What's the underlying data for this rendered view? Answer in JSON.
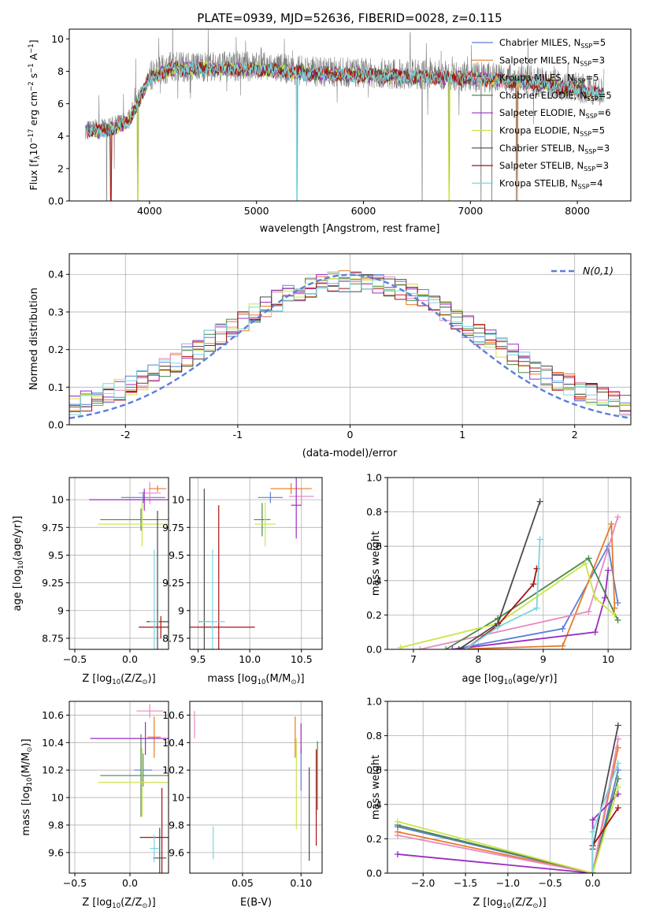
{
  "figure_title": "PLATE=0939, MJD=52636, FIBERID=0028, z=0.115",
  "palette": [
    "#5b7fd8",
    "#e87a2a",
    "#e88ac0",
    "#4a8a4a",
    "#9b2cc0",
    "#cde34a",
    "#4a4a4a",
    "#aa1010",
    "#7ad6de"
  ],
  "chart_data": [
    {
      "id": "spectrum",
      "type": "line",
      "title": "PLATE=0939, MJD=52636, FIBERID=0028, z=0.115",
      "xlabel": "wavelength [Angstrom, rest frame]",
      "ylabel_parts": [
        "Flux [f",
        "λ",
        "10",
        "−17",
        " erg cm",
        "−2",
        " s",
        "−1",
        " A",
        "−1",
        "]"
      ],
      "xlim": [
        3250,
        8500
      ],
      "ylim": [
        0,
        10.6
      ],
      "xticks": [
        4000,
        5000,
        6000,
        7000,
        8000
      ],
      "yticks": [
        0,
        2,
        4,
        6,
        8,
        10
      ],
      "legend_position": "top-right",
      "data_color": "#808080",
      "series": [
        {
          "name": "Chabrier MILES, N",
          "sub": "SSP",
          "suffix": "=5",
          "color": "#5b7fd8"
        },
        {
          "name": "Salpeter MILES, N",
          "sub": "SSP",
          "suffix": "=3",
          "color": "#e87a2a"
        },
        {
          "name": "Kroupa MILES, N",
          "sub": "SSP",
          "suffix": "=5",
          "color": "#e88ac0"
        },
        {
          "name": "Chabrier ELODIE, N",
          "sub": "SSP",
          "suffix": "=5",
          "color": "#4a8a4a"
        },
        {
          "name": "Salpeter ELODIE, N",
          "sub": "SSP",
          "suffix": "=6",
          "color": "#9b2cc0"
        },
        {
          "name": "Kroupa ELODIE, N",
          "sub": "SSP",
          "suffix": "=5",
          "color": "#cde34a"
        },
        {
          "name": "Chabrier STELIB, N",
          "sub": "SSP",
          "suffix": "=3",
          "color": "#4a4a4a"
        },
        {
          "name": "Salpeter STELIB, N",
          "sub": "SSP",
          "suffix": "=3",
          "color": "#aa1010"
        },
        {
          "name": "Kroupa STELIB, N",
          "sub": "SSP",
          "suffix": "=4",
          "color": "#7ad6de"
        }
      ],
      "continuum": {
        "x": [
          3400,
          3600,
          3800,
          4000,
          4200,
          4500,
          5000,
          5500,
          6000,
          6500,
          7000,
          7500,
          8000,
          8250
        ],
        "y": [
          4.4,
          4.5,
          5.0,
          7.7,
          8.3,
          8.3,
          8.3,
          8.0,
          7.9,
          7.8,
          7.7,
          7.5,
          7.0,
          6.7
        ]
      },
      "spikes": [
        {
          "x": 3600,
          "y": 0
        },
        {
          "x": 3640,
          "y": 0
        },
        {
          "x": 3890,
          "y": 0
        },
        {
          "x": 5380,
          "y": 0
        },
        {
          "x": 6550,
          "y": 0
        },
        {
          "x": 6800,
          "y": 0
        },
        {
          "x": 7100,
          "y": 0
        },
        {
          "x": 7200,
          "y": 0
        },
        {
          "x": 7430,
          "y": 0
        },
        {
          "x": 7440,
          "y": 0
        }
      ]
    },
    {
      "id": "residuals",
      "type": "step",
      "xlabel": "(data-model)/error",
      "ylabel": "Normed distribution",
      "xlim": [
        -2.5,
        2.5
      ],
      "ylim": [
        0,
        0.455
      ],
      "xticks": [
        -2,
        -1,
        0,
        1,
        2
      ],
      "yticks": [
        0.0,
        0.1,
        0.2,
        0.3,
        0.4
      ],
      "grid": true,
      "legend_position": "top-right",
      "reference": {
        "name": "N(0,1)",
        "mean": 0,
        "sigma": 1,
        "color": "#5b7fd8"
      },
      "bin_width": 0.1
    },
    {
      "id": "age-vs-Z",
      "type": "errorbar",
      "xlabel_parts": [
        "Z [log",
        "10",
        "(Z/Z",
        "⊙",
        ")]"
      ],
      "ylabel_parts": [
        "age  [log",
        "10",
        "(age/yr)]"
      ],
      "xlim": [
        -0.55,
        0.35
      ],
      "ylim": [
        8.65,
        10.2
      ],
      "xticks": [
        -0.5,
        0.0,
        0.5
      ],
      "xticklabels": [
        "−0.5",
        "0.0",
        "0.5"
      ],
      "yticks": [
        8.75,
        9.0,
        9.25,
        9.5,
        9.75,
        10.0
      ],
      "grid": true,
      "points": [
        {
          "x": 0.12,
          "y": 10.02,
          "xerr": 0.2,
          "yerr": 0.05,
          "c": 0
        },
        {
          "x": 0.25,
          "y": 10.1,
          "xerr": 0.08,
          "yerr": 0.03,
          "c": 1
        },
        {
          "x": 0.18,
          "y": 10.06,
          "xerr": 0.1,
          "yerr": 0.1,
          "c": 2
        },
        {
          "x": 0.1,
          "y": 9.82,
          "xerr": 0.37,
          "yerr": 0.1,
          "c": 3
        },
        {
          "x": 0.13,
          "y": 10.0,
          "xerr": 0.5,
          "yerr": 0.1,
          "c": 4
        },
        {
          "x": 0.11,
          "y": 9.78,
          "xerr": 0.4,
          "yerr": 0.2,
          "c": 5
        },
        {
          "x": 0.25,
          "y": 8.9,
          "xerr": 0.1,
          "yerr": 1.0,
          "c": 6
        },
        {
          "x": 0.28,
          "y": 8.85,
          "xerr": 0.2,
          "yerr": 0.1,
          "c": 7
        },
        {
          "x": 0.22,
          "y": 8.9,
          "xerr": 0.04,
          "yerr": 0.65,
          "c": 8
        }
      ]
    },
    {
      "id": "age-vs-mass",
      "type": "errorbar",
      "xlabel_parts": [
        "mass [log",
        "10",
        "(M/M",
        "⊙",
        ")]"
      ],
      "xlim": [
        9.42,
        10.7
      ],
      "ylim": [
        8.65,
        10.2
      ],
      "xticks": [
        9.5,
        10.0,
        10.5
      ],
      "xticklabels": [
        "9.5",
        "10.0",
        "10.5"
      ],
      "yticks": [
        8.75,
        9.0,
        9.25,
        9.5,
        9.75,
        10.0
      ],
      "grid": true,
      "points": [
        {
          "x": 10.2,
          "y": 10.02,
          "xerr": 0.12,
          "yerr": 0.05,
          "c": 0
        },
        {
          "x": 10.4,
          "y": 10.1,
          "xerr": 0.2,
          "yerr": 0.05,
          "c": 1
        },
        {
          "x": 10.5,
          "y": 10.03,
          "xerr": 0.12,
          "yerr": 0.08,
          "c": 2
        },
        {
          "x": 10.12,
          "y": 9.82,
          "xerr": 0.08,
          "yerr": 0.15,
          "c": 3
        },
        {
          "x": 10.45,
          "y": 9.95,
          "xerr": 0.05,
          "yerr": 0.3,
          "c": 4
        },
        {
          "x": 10.15,
          "y": 9.78,
          "xerr": 0.1,
          "yerr": 0.2,
          "c": 5
        },
        {
          "x": 9.56,
          "y": 8.9,
          "xerr": 0.05,
          "yerr": 1.2,
          "c": 6
        },
        {
          "x": 9.7,
          "y": 8.85,
          "xerr": 0.35,
          "yerr": 1.1,
          "c": 7
        },
        {
          "x": 9.64,
          "y": 8.9,
          "xerr": 0.12,
          "yerr": 0.65,
          "c": 8
        }
      ]
    },
    {
      "id": "weight-vs-age",
      "type": "line",
      "xlabel_parts": [
        "age  [log",
        "10",
        "(age/yr)]"
      ],
      "ylabel": "mass weight",
      "xlim": [
        6.6,
        10.35
      ],
      "ylim": [
        0,
        1.0
      ],
      "xticks": [
        7,
        8,
        9,
        10
      ],
      "yticks": [
        0.0,
        0.2,
        0.4,
        0.6,
        0.8,
        1.0
      ],
      "grid": true,
      "series": [
        {
          "c": 0,
          "x": [
            7.6,
            9.3,
            10.0,
            10.15
          ],
          "y": [
            0.0,
            0.12,
            0.6,
            0.27
          ]
        },
        {
          "c": 1,
          "x": [
            7.6,
            9.3,
            10.05,
            10.1
          ],
          "y": [
            0.0,
            0.02,
            0.73,
            0.24
          ]
        },
        {
          "c": 2,
          "x": [
            7.1,
            9.7,
            10.15
          ],
          "y": [
            0.0,
            0.22,
            0.77
          ]
        },
        {
          "c": 3,
          "x": [
            7.5,
            8.3,
            9.7,
            10.15
          ],
          "y": [
            0.0,
            0.18,
            0.53,
            0.17
          ]
        },
        {
          "c": 4,
          "x": [
            7.6,
            9.8,
            9.95,
            10.0
          ],
          "y": [
            0.0,
            0.1,
            0.3,
            0.46
          ]
        },
        {
          "c": 5,
          "x": [
            6.8,
            8.3,
            9.65,
            9.8,
            10.1
          ],
          "y": [
            0.01,
            0.15,
            0.5,
            0.3,
            0.2
          ]
        },
        {
          "c": 6,
          "x": [
            7.7,
            8.3,
            8.95
          ],
          "y": [
            0.0,
            0.15,
            0.86
          ]
        },
        {
          "c": 7,
          "x": [
            7.8,
            8.3,
            8.85,
            8.9
          ],
          "y": [
            0.0,
            0.14,
            0.38,
            0.47
          ]
        },
        {
          "c": 8,
          "x": [
            7.8,
            8.3,
            8.9,
            8.95
          ],
          "y": [
            0.0,
            0.13,
            0.24,
            0.64
          ]
        }
      ]
    },
    {
      "id": "mass-vs-Z",
      "type": "errorbar",
      "xlabel_parts": [
        "Z [log",
        "10",
        "(Z/Z",
        "⊙",
        ")]"
      ],
      "ylabel_parts": [
        "mass [log",
        "10",
        "(M/M",
        "⊙",
        ")]"
      ],
      "xlim": [
        -0.55,
        0.35
      ],
      "ylim": [
        9.45,
        10.7
      ],
      "xticks": [
        -0.5,
        0.0,
        0.5
      ],
      "xticklabels": [
        "−0.5",
        "0.0",
        "0.5"
      ],
      "yticks": [
        9.6,
        9.8,
        10.0,
        10.2,
        10.4,
        10.6
      ],
      "grid": true,
      "points": [
        {
          "x": 0.12,
          "y": 10.2,
          "xerr": 0.08,
          "yerr": 0.12,
          "c": 0
        },
        {
          "x": 0.22,
          "y": 10.44,
          "xerr": 0.06,
          "yerr": 0.15,
          "c": 1
        },
        {
          "x": 0.18,
          "y": 10.63,
          "xerr": 0.12,
          "yerr": 0.05,
          "c": 2
        },
        {
          "x": 0.1,
          "y": 10.16,
          "xerr": 0.37,
          "yerr": 0.3,
          "c": 3
        },
        {
          "x": 0.14,
          "y": 10.43,
          "xerr": 0.5,
          "yerr": 0.12,
          "c": 4
        },
        {
          "x": 0.11,
          "y": 10.11,
          "xerr": 0.4,
          "yerr": 0.25,
          "c": 5
        },
        {
          "x": 0.27,
          "y": 9.56,
          "xerr": 0.06,
          "yerr": 0.22,
          "c": 6
        },
        {
          "x": 0.29,
          "y": 9.71,
          "xerr": 0.2,
          "yerr": 0.36,
          "c": 7
        },
        {
          "x": 0.22,
          "y": 9.63,
          "xerr": 0.04,
          "yerr": 0.1,
          "c": 8
        }
      ]
    },
    {
      "id": "mass-vs-EBV",
      "type": "errorbar",
      "xlabel": "E(B-V)",
      "xlim": [
        0.005,
        0.118
      ],
      "ylim": [
        9.45,
        10.7
      ],
      "xticks": [
        0.05,
        0.1
      ],
      "xticklabels": [
        "0.05",
        "0.10"
      ],
      "yticks": [
        9.6,
        9.8,
        10.0,
        10.2,
        10.4,
        10.6
      ],
      "grid": true,
      "points": [
        {
          "x": 0.1,
          "y": 10.2,
          "xerr": 0,
          "yerr": 0.15,
          "c": 0
        },
        {
          "x": 0.095,
          "y": 10.44,
          "xerr": 0,
          "yerr": 0.15,
          "c": 1
        },
        {
          "x": 0.009,
          "y": 10.53,
          "xerr": 0,
          "yerr": 0.1,
          "c": 2
        },
        {
          "x": 0.114,
          "y": 10.16,
          "xerr": 0,
          "yerr": 0.25,
          "c": 3
        },
        {
          "x": 0.1,
          "y": 10.43,
          "xerr": 0,
          "yerr": 0.11,
          "c": 4
        },
        {
          "x": 0.096,
          "y": 10.1,
          "xerr": 0,
          "yerr": 0.33,
          "c": 5
        },
        {
          "x": 0.107,
          "y": 9.88,
          "xerr": 0,
          "yerr": 0.34,
          "c": 6
        },
        {
          "x": 0.113,
          "y": 10.0,
          "xerr": 0,
          "yerr": 0.35,
          "c": 7
        },
        {
          "x": 0.025,
          "y": 9.67,
          "xerr": 0,
          "yerr": 0.12,
          "c": 8
        }
      ]
    },
    {
      "id": "weight-vs-Z",
      "type": "line",
      "xlabel_parts": [
        "Z [log",
        "10",
        "(Z/Z",
        "⊙",
        ")]"
      ],
      "ylabel": "mass weight",
      "xlim": [
        -2.42,
        0.45
      ],
      "ylim": [
        0,
        1.0
      ],
      "xticks": [
        -2.0,
        -1.5,
        -1.0,
        -0.5,
        0.0
      ],
      "xticklabels": [
        "−2.0",
        "−1.5",
        "−1.0",
        "−0.5",
        "0.0"
      ],
      "yticks": [
        0.0,
        0.2,
        0.4,
        0.6,
        0.8,
        1.0
      ],
      "grid": true,
      "series": [
        {
          "c": 0,
          "x": [
            -2.3,
            0.0,
            0.3
          ],
          "y": [
            0.27,
            0.0,
            0.6
          ]
        },
        {
          "c": 1,
          "x": [
            -2.3,
            0.0,
            0.3
          ],
          "y": [
            0.24,
            0.0,
            0.73
          ]
        },
        {
          "c": 2,
          "x": [
            -2.3,
            0.0,
            0.3
          ],
          "y": [
            0.22,
            0.0,
            0.78
          ]
        },
        {
          "c": 3,
          "x": [
            -2.3,
            0.0,
            0.3
          ],
          "y": [
            0.28,
            0.0,
            0.55
          ]
        },
        {
          "c": 4,
          "x": [
            -2.3,
            0.0,
            0.0,
            0.3
          ],
          "y": [
            0.11,
            0.0,
            0.31,
            0.46
          ]
        },
        {
          "c": 5,
          "x": [
            -2.3,
            0.0,
            0.3
          ],
          "y": [
            0.3,
            0.0,
            0.5
          ]
        },
        {
          "c": 6,
          "x": [
            0.0,
            0.0,
            0.3
          ],
          "y": [
            0.0,
            0.14,
            0.86
          ]
        },
        {
          "c": 7,
          "x": [
            0.0,
            0.0,
            0.3
          ],
          "y": [
            0.0,
            0.16,
            0.38
          ]
        },
        {
          "c": 8,
          "x": [
            0.0,
            0.0,
            0.3
          ],
          "y": [
            0.0,
            0.24,
            0.64
          ]
        }
      ]
    }
  ]
}
